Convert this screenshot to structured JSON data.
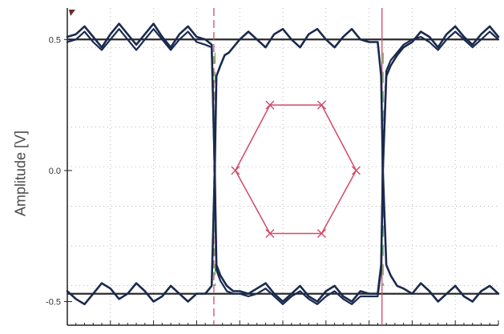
{
  "chart_data": {
    "type": "line",
    "title": "",
    "xlabel": "",
    "ylabel": "Amplitude [V]",
    "yticks": [
      {
        "label": "0.5",
        "value": 0.5
      },
      {
        "label": "0.0",
        "value": 0.0
      },
      {
        "label": "-0.5",
        "value": -0.5
      }
    ],
    "ylim": [
      -0.59,
      0.62
    ],
    "xlim": [
      0,
      100
    ],
    "grid": true,
    "colors": {
      "trace": "#1a2a4e",
      "reference_line": "#2b2b2b",
      "marker": "#d14a68",
      "edge_highlight": "#38c838",
      "grid": "#b8b8b8",
      "axis": "#222222"
    },
    "reference_lines": [
      0.5,
      -0.47
    ],
    "vertical_markers": [
      {
        "x": 34,
        "style": "dashed"
      },
      {
        "x": 73,
        "style": "solid"
      }
    ],
    "eye_mask": {
      "points": [
        [
          39,
          0.0
        ],
        [
          47,
          0.25
        ],
        [
          59,
          0.25
        ],
        [
          67,
          0.0
        ],
        [
          59,
          -0.24
        ],
        [
          47,
          -0.24
        ]
      ]
    },
    "series": [
      {
        "values": [
          [
            0,
            0.51
          ],
          [
            2,
            0.52
          ],
          [
            4,
            0.55
          ],
          [
            6,
            0.51
          ],
          [
            8,
            0.47
          ],
          [
            10,
            0.52
          ],
          [
            12,
            0.56
          ],
          [
            14,
            0.52
          ],
          [
            16,
            0.48
          ],
          [
            18,
            0.52
          ],
          [
            20,
            0.56
          ],
          [
            22,
            0.51
          ],
          [
            24,
            0.47
          ],
          [
            26,
            0.52
          ],
          [
            28,
            0.55
          ],
          [
            30,
            0.51
          ],
          [
            32,
            0.5
          ],
          [
            33.5,
            0.48
          ],
          [
            34.2,
            0.0
          ],
          [
            34.6,
            -0.36
          ],
          [
            35.5,
            -0.4
          ],
          [
            37,
            -0.44
          ],
          [
            38.5,
            -0.46
          ],
          [
            40,
            -0.46
          ],
          [
            42,
            -0.47
          ],
          [
            44,
            -0.45
          ],
          [
            46,
            -0.43
          ],
          [
            48,
            -0.47
          ],
          [
            50,
            -0.5
          ],
          [
            52,
            -0.47
          ],
          [
            54,
            -0.44
          ],
          [
            56,
            -0.48
          ],
          [
            58,
            -0.5
          ],
          [
            60,
            -0.46
          ],
          [
            62,
            -0.44
          ],
          [
            64,
            -0.48
          ],
          [
            66,
            -0.5
          ],
          [
            68,
            -0.46
          ],
          [
            70,
            -0.47
          ],
          [
            72,
            -0.47
          ],
          [
            72.8,
            -0.36
          ],
          [
            73.2,
            0.0
          ],
          [
            74,
            0.36
          ],
          [
            75,
            0.4
          ],
          [
            76.5,
            0.44
          ],
          [
            78,
            0.47
          ],
          [
            80,
            0.49
          ],
          [
            82,
            0.53
          ],
          [
            84,
            0.51
          ],
          [
            86,
            0.47
          ],
          [
            88,
            0.52
          ],
          [
            90,
            0.55
          ],
          [
            92,
            0.51
          ],
          [
            94,
            0.48
          ],
          [
            96,
            0.52
          ],
          [
            98,
            0.55
          ],
          [
            100,
            0.51
          ]
        ]
      },
      {
        "values": [
          [
            0,
            -0.46
          ],
          [
            2,
            -0.49
          ],
          [
            4,
            -0.51
          ],
          [
            6,
            -0.47
          ],
          [
            8,
            -0.43
          ],
          [
            10,
            -0.45
          ],
          [
            12,
            -0.49
          ],
          [
            14,
            -0.47
          ],
          [
            16,
            -0.43
          ],
          [
            18,
            -0.46
          ],
          [
            20,
            -0.5
          ],
          [
            22,
            -0.48
          ],
          [
            24,
            -0.44
          ],
          [
            26,
            -0.47
          ],
          [
            28,
            -0.5
          ],
          [
            30,
            -0.47
          ],
          [
            32,
            -0.47
          ],
          [
            33.5,
            -0.44
          ],
          [
            34.2,
            0.0
          ],
          [
            34.6,
            0.36
          ],
          [
            35.5,
            0.4
          ],
          [
            36.5,
            0.44
          ],
          [
            37.5,
            0.45
          ],
          [
            38.5,
            0.47
          ],
          [
            40,
            0.5
          ],
          [
            42,
            0.53
          ],
          [
            44,
            0.5
          ],
          [
            46,
            0.47
          ],
          [
            48,
            0.52
          ],
          [
            50,
            0.54
          ],
          [
            52,
            0.5
          ],
          [
            54,
            0.47
          ],
          [
            56,
            0.52
          ],
          [
            58,
            0.54
          ],
          [
            60,
            0.5
          ],
          [
            62,
            0.47
          ],
          [
            64,
            0.51
          ],
          [
            66,
            0.54
          ],
          [
            68,
            0.5
          ],
          [
            70,
            0.49
          ],
          [
            72,
            0.49
          ],
          [
            72.8,
            0.36
          ],
          [
            73.2,
            0.0
          ],
          [
            74,
            -0.36
          ],
          [
            75,
            -0.4
          ],
          [
            76.5,
            -0.44
          ],
          [
            78,
            -0.45
          ],
          [
            80,
            -0.47
          ],
          [
            82,
            -0.43
          ],
          [
            84,
            -0.46
          ],
          [
            86,
            -0.5
          ],
          [
            88,
            -0.47
          ],
          [
            90,
            -0.44
          ],
          [
            92,
            -0.48
          ],
          [
            94,
            -0.5
          ],
          [
            96,
            -0.46
          ],
          [
            98,
            -0.44
          ],
          [
            100,
            -0.47
          ]
        ]
      },
      {
        "values": [
          [
            0,
            0.49
          ],
          [
            2,
            0.5
          ],
          [
            4,
            0.53
          ],
          [
            6,
            0.49
          ],
          [
            8,
            0.46
          ],
          [
            10,
            0.5
          ],
          [
            12,
            0.54
          ],
          [
            14,
            0.5
          ],
          [
            16,
            0.46
          ],
          [
            18,
            0.5
          ],
          [
            20,
            0.54
          ],
          [
            22,
            0.5
          ],
          [
            24,
            0.46
          ],
          [
            26,
            0.5
          ],
          [
            28,
            0.53
          ],
          [
            30,
            0.49
          ],
          [
            32,
            0.48
          ],
          [
            33.5,
            0.47
          ],
          [
            34.2,
            0.0
          ],
          [
            34.6,
            -0.38
          ],
          [
            35.5,
            -0.42
          ],
          [
            37,
            -0.46
          ],
          [
            38.5,
            -0.47
          ],
          [
            40,
            -0.47
          ],
          [
            42,
            -0.48
          ],
          [
            44,
            -0.47
          ],
          [
            46,
            -0.45
          ],
          [
            48,
            -0.48
          ],
          [
            50,
            -0.51
          ],
          [
            52,
            -0.48
          ],
          [
            54,
            -0.46
          ],
          [
            56,
            -0.49
          ],
          [
            58,
            -0.51
          ],
          [
            60,
            -0.48
          ],
          [
            62,
            -0.46
          ],
          [
            64,
            -0.49
          ],
          [
            66,
            -0.51
          ],
          [
            68,
            -0.48
          ],
          [
            70,
            -0.48
          ],
          [
            72,
            -0.48
          ],
          [
            72.8,
            -0.38
          ],
          [
            73.2,
            0.0
          ],
          [
            74,
            0.38
          ],
          [
            75,
            0.42
          ],
          [
            76.5,
            0.45
          ],
          [
            78,
            0.48
          ],
          [
            80,
            0.5
          ],
          [
            82,
            0.51
          ],
          [
            84,
            0.49
          ],
          [
            86,
            0.46
          ],
          [
            88,
            0.5
          ],
          [
            90,
            0.53
          ],
          [
            92,
            0.5
          ],
          [
            94,
            0.47
          ],
          [
            96,
            0.5
          ],
          [
            98,
            0.53
          ],
          [
            100,
            0.5
          ]
        ]
      }
    ]
  }
}
